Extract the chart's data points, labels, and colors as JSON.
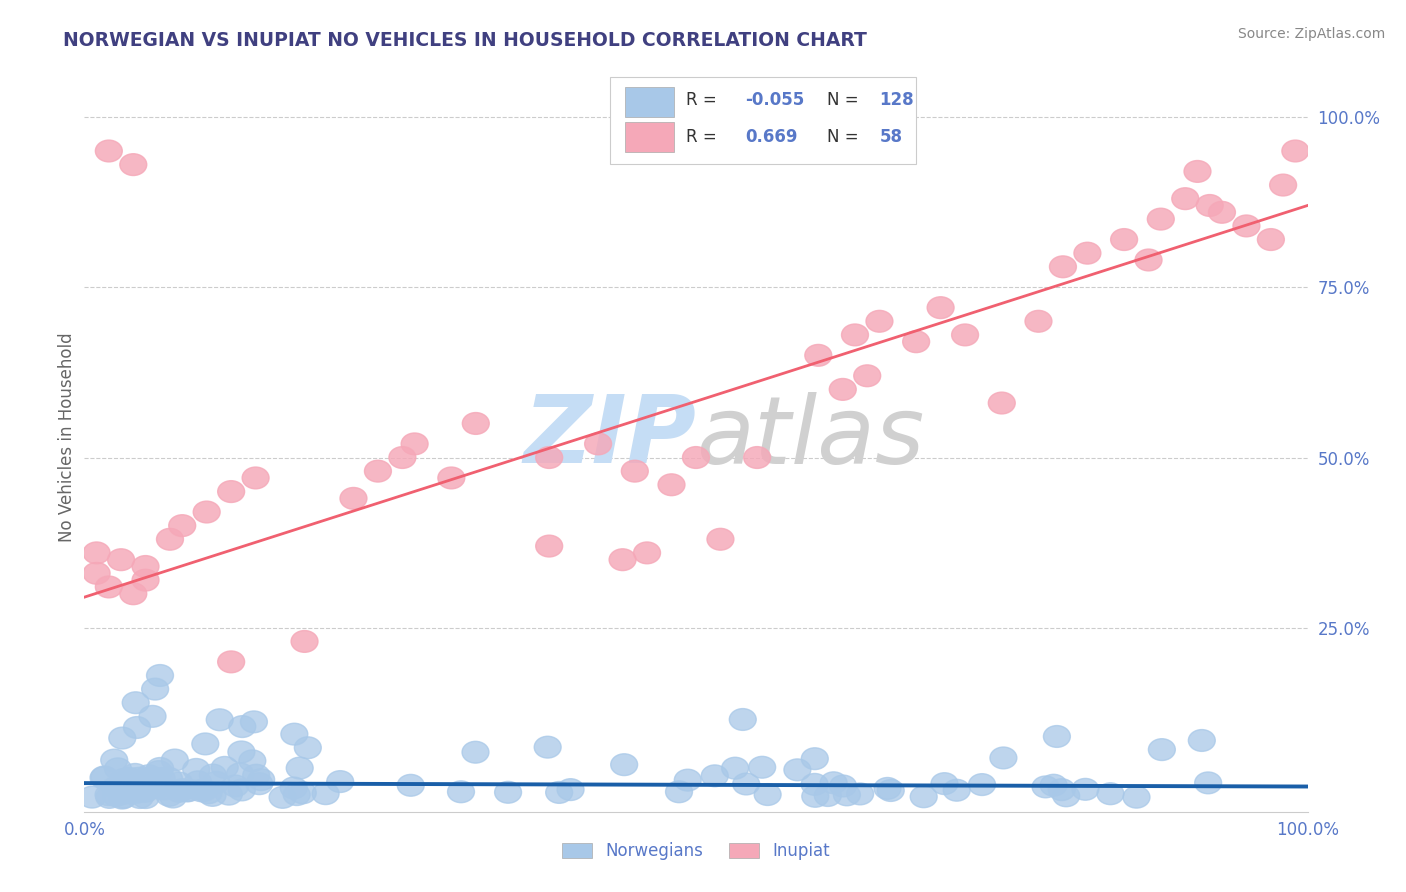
{
  "title": "NORWEGIAN VS INUPIAT NO VEHICLES IN HOUSEHOLD CORRELATION CHART",
  "source": "Source: ZipAtlas.com",
  "ylabel": "No Vehicles in Household",
  "legend_norwegian": "Norwegians",
  "legend_inupiat": "Inupiat",
  "r_norwegian": -0.055,
  "n_norwegian": 128,
  "r_inupiat": 0.669,
  "n_inupiat": 58,
  "norwegian_color": "#a8c8e8",
  "inupiat_color": "#f5a8b8",
  "norwegian_line_color": "#1a5fa8",
  "inupiat_line_color": "#f06070",
  "watermark_zip_color": "#c5ddf5",
  "watermark_atlas_color": "#d0d0d0",
  "background_color": "#ffffff",
  "grid_color": "#cccccc",
  "title_color": "#404080",
  "axis_label_color": "#5878c8",
  "norwegian_line_intercept": 0.022,
  "norwegian_line_slope": -0.005,
  "inupiat_line_intercept": 0.295,
  "inupiat_line_slope": 0.575
}
